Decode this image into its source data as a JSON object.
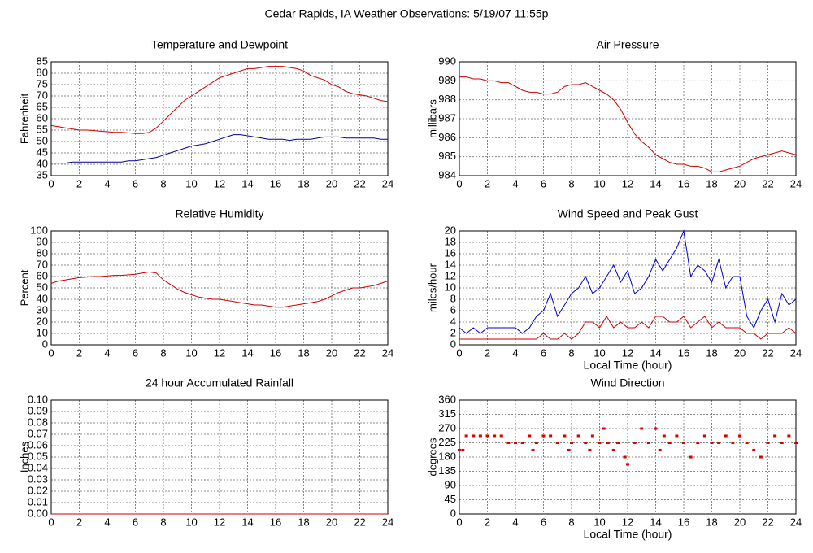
{
  "title": "Cedar Rapids, IA Weather Observations: 5/19/07 11:55p",
  "chart_data": [
    {
      "type": "line",
      "title": "Temperature and Dewpoint",
      "ylabel": "Fahrenheit",
      "x": [
        0,
        0.5,
        1,
        1.5,
        2,
        2.5,
        3,
        3.5,
        4,
        4.5,
        5,
        5.5,
        6,
        6.5,
        7,
        7.5,
        8,
        8.5,
        9,
        9.5,
        10,
        10.5,
        11,
        11.5,
        12,
        12.5,
        13,
        13.5,
        14,
        14.5,
        15,
        15.5,
        16,
        16.5,
        17,
        17.5,
        18,
        18.5,
        19,
        19.5,
        20,
        20.5,
        21,
        21.5,
        22,
        22.5,
        23,
        23.5,
        24
      ],
      "series": [
        {
          "color": "#cc0000",
          "values": [
            57,
            56.5,
            56,
            55.5,
            55,
            55,
            54.8,
            54.5,
            54.3,
            54,
            54,
            53.8,
            53.5,
            53.5,
            54,
            56,
            59,
            62,
            65,
            68,
            70,
            72,
            74,
            76,
            78,
            79,
            80,
            81,
            82,
            82,
            82.5,
            83,
            83,
            83,
            82.5,
            82,
            81,
            79,
            78,
            77,
            75,
            74,
            72,
            71,
            70.5,
            70,
            69,
            68,
            67.5
          ]
        },
        {
          "color": "#000099",
          "values": [
            40.5,
            40.5,
            40.5,
            41,
            41,
            41,
            41,
            41,
            41,
            41,
            41,
            41.5,
            41.5,
            42,
            42.5,
            43,
            44,
            45,
            46,
            47,
            48,
            48.5,
            49,
            50,
            51,
            52,
            53,
            53,
            52.5,
            52,
            51.5,
            51,
            51,
            51,
            50.5,
            51,
            51,
            51,
            51.5,
            52,
            52,
            52,
            51.5,
            51.5,
            51.5,
            51.5,
            51.5,
            51,
            51
          ]
        }
      ],
      "xlim": [
        0,
        24
      ],
      "xticks": [
        0,
        2,
        4,
        6,
        8,
        10,
        12,
        14,
        16,
        18,
        20,
        22,
        24
      ],
      "ylim": [
        35,
        85
      ],
      "yticks": [
        35,
        40,
        45,
        50,
        55,
        60,
        65,
        70,
        75,
        80,
        85
      ],
      "grid": true
    },
    {
      "type": "line",
      "title": "Air Pressure",
      "ylabel": "millibars",
      "x": [
        0,
        0.5,
        1,
        1.5,
        2,
        2.5,
        3,
        3.5,
        4,
        4.5,
        5,
        5.5,
        6,
        6.5,
        7,
        7.5,
        8,
        8.5,
        9,
        9.5,
        10,
        10.5,
        11,
        11.5,
        12,
        12.5,
        13,
        13.5,
        14,
        14.5,
        15,
        15.5,
        16,
        16.5,
        17,
        17.5,
        18,
        18.5,
        19,
        19.5,
        20,
        20.5,
        21,
        21.5,
        22,
        22.5,
        23,
        23.5,
        24
      ],
      "series": [
        {
          "color": "#cc0000",
          "values": [
            989.2,
            989.2,
            989.1,
            989.1,
            989.0,
            989.0,
            988.9,
            988.9,
            988.7,
            988.5,
            988.4,
            988.4,
            988.3,
            988.3,
            988.4,
            988.7,
            988.8,
            988.8,
            988.9,
            988.7,
            988.5,
            988.3,
            988.0,
            987.5,
            986.8,
            986.2,
            985.8,
            985.5,
            985.1,
            984.9,
            984.7,
            984.6,
            984.6,
            984.5,
            984.5,
            984.4,
            984.2,
            984.2,
            984.3,
            984.4,
            984.5,
            984.7,
            984.9,
            985.0,
            985.1,
            985.2,
            985.3,
            985.2,
            985.1
          ]
        }
      ],
      "xlim": [
        0,
        24
      ],
      "xticks": [
        0,
        2,
        4,
        6,
        8,
        10,
        12,
        14,
        16,
        18,
        20,
        22,
        24
      ],
      "ylim": [
        984,
        990
      ],
      "yticks": [
        984,
        985,
        986,
        987,
        988,
        989,
        990
      ],
      "grid": true
    },
    {
      "type": "line",
      "title": "Relative Humidity",
      "ylabel": "Percent",
      "x": [
        0,
        0.5,
        1,
        1.5,
        2,
        2.5,
        3,
        3.5,
        4,
        4.5,
        5,
        5.5,
        6,
        6.5,
        7,
        7.5,
        8,
        8.5,
        9,
        9.5,
        10,
        10.5,
        11,
        11.5,
        12,
        12.5,
        13,
        13.5,
        14,
        14.5,
        15,
        15.5,
        16,
        16.5,
        17,
        17.5,
        18,
        18.5,
        19,
        19.5,
        20,
        20.5,
        21,
        21.5,
        22,
        22.5,
        23,
        23.5,
        24
      ],
      "series": [
        {
          "color": "#cc0000",
          "values": [
            54,
            56,
            57,
            58,
            59,
            59.5,
            60,
            60,
            60.5,
            61,
            61,
            61.5,
            62,
            63,
            64,
            63,
            57,
            53,
            49,
            46,
            44,
            42,
            41,
            40,
            40,
            39,
            38,
            37,
            36,
            35,
            35,
            34,
            33,
            33,
            34,
            35,
            36,
            37,
            38,
            40,
            43,
            46,
            48,
            50,
            50,
            51,
            52,
            54,
            56
          ]
        }
      ],
      "xlim": [
        0,
        24
      ],
      "xticks": [
        0,
        2,
        4,
        6,
        8,
        10,
        12,
        14,
        16,
        18,
        20,
        22,
        24
      ],
      "ylim": [
        0,
        100
      ],
      "yticks": [
        0,
        10,
        20,
        30,
        40,
        50,
        60,
        70,
        80,
        90,
        100
      ],
      "grid": true
    },
    {
      "type": "line",
      "title": "Wind Speed and Peak Gust",
      "ylabel": "miles/hour",
      "xlabel": "Local Time (hour)",
      "x": [
        0,
        0.5,
        1,
        1.5,
        2,
        2.5,
        3,
        3.5,
        4,
        4.5,
        5,
        5.5,
        6,
        6.5,
        7,
        7.5,
        8,
        8.5,
        9,
        9.5,
        10,
        10.5,
        11,
        11.5,
        12,
        12.5,
        13,
        13.5,
        14,
        14.5,
        15,
        15.5,
        16,
        16.5,
        17,
        17.5,
        18,
        18.5,
        19,
        19.5,
        20,
        20.5,
        21,
        21.5,
        22,
        22.5,
        23,
        23.5,
        24
      ],
      "series": [
        {
          "color": "#0000cc",
          "values": [
            3,
            2,
            3,
            2,
            3,
            3,
            3,
            3,
            3,
            2,
            3,
            5,
            6,
            9,
            5,
            7,
            9,
            10,
            12,
            9,
            10,
            12,
            14,
            11,
            13,
            9,
            10,
            12,
            15,
            13,
            15,
            17,
            20,
            12,
            14,
            13,
            11,
            15,
            10,
            12,
            12,
            5,
            3,
            6,
            8,
            4,
            9,
            7,
            8
          ]
        },
        {
          "color": "#cc0000",
          "values": [
            1,
            1,
            1,
            1,
            1,
            1,
            1,
            1,
            1,
            1,
            1,
            1,
            2,
            1,
            1,
            2,
            1,
            2,
            4,
            4,
            3,
            5,
            3,
            4,
            3,
            3,
            4,
            3,
            5,
            5,
            4,
            4,
            5,
            3,
            4,
            5,
            3,
            4,
            3,
            3,
            3,
            2,
            2,
            1,
            2,
            2,
            2,
            3,
            2
          ]
        }
      ],
      "xlim": [
        0,
        24
      ],
      "xticks": [
        0,
        2,
        4,
        6,
        8,
        10,
        12,
        14,
        16,
        18,
        20,
        22,
        24
      ],
      "ylim": [
        0,
        20
      ],
      "yticks": [
        0,
        2,
        4,
        6,
        8,
        10,
        12,
        14,
        16,
        18,
        20
      ],
      "grid": true
    },
    {
      "type": "line",
      "title": "24 hour Accumulated Rainfall",
      "ylabel": "Inches",
      "x": [
        0,
        24
      ],
      "series": [
        {
          "color": "#cc0000",
          "values": [
            0,
            0
          ]
        }
      ],
      "xlim": [
        0,
        24
      ],
      "xticks": [
        0,
        2,
        4,
        6,
        8,
        10,
        12,
        14,
        16,
        18,
        20,
        22,
        24
      ],
      "ylim": [
        0,
        0.1
      ],
      "yticks": [
        {
          "value": 0,
          "label": "0.00"
        },
        {
          "value": 0.01,
          "label": "0.01"
        },
        {
          "value": 0.02,
          "label": "0.02"
        },
        {
          "value": 0.03,
          "label": "0.03"
        },
        {
          "value": 0.04,
          "label": "0.04"
        },
        {
          "value": 0.05,
          "label": "0.05"
        },
        {
          "value": 0.06,
          "label": "0.06"
        },
        {
          "value": 0.07,
          "label": "0.07"
        },
        {
          "value": 0.08,
          "label": "0.08"
        },
        {
          "value": 0.09,
          "label": "0.09"
        },
        {
          "value": 0.1,
          "label": "0.10"
        }
      ],
      "grid": true
    },
    {
      "type": "scatter",
      "title": "Wind Direction",
      "ylabel": "degrees",
      "xlabel": "Local Time (hour)",
      "x": [
        0,
        0.25,
        0.5,
        1,
        1.5,
        2,
        2.5,
        3,
        3.5,
        4,
        4.5,
        5,
        5.25,
        5.5,
        6,
        6.5,
        7,
        7.5,
        7.8,
        8,
        8.5,
        9,
        9.3,
        9.5,
        10,
        10.3,
        10.6,
        11,
        11.3,
        11.8,
        12,
        12.5,
        13,
        13.5,
        14,
        14.3,
        14.6,
        15,
        15.5,
        16,
        16.5,
        17,
        17.5,
        18,
        18.5,
        19,
        19.5,
        20,
        20.5,
        21,
        21.5,
        22,
        22.5,
        23,
        23.5,
        24
      ],
      "series": [
        {
          "color": "#dd0000",
          "values": [
            202,
            202,
            247,
            247,
            247,
            247,
            247,
            247,
            225,
            225,
            225,
            247,
            202,
            225,
            247,
            247,
            225,
            247,
            202,
            225,
            247,
            225,
            202,
            247,
            225,
            270,
            225,
            202,
            225,
            180,
            157,
            225,
            270,
            225,
            270,
            202,
            247,
            225,
            247,
            225,
            180,
            225,
            247,
            225,
            225,
            247,
            225,
            247,
            225,
            202,
            180,
            225,
            247,
            225,
            247,
            225
          ]
        }
      ],
      "xlim": [
        0,
        24
      ],
      "xticks": [
        0,
        2,
        4,
        6,
        8,
        10,
        12,
        14,
        16,
        18,
        20,
        22,
        24
      ],
      "ylim": [
        0,
        360
      ],
      "yticks": [
        0,
        45,
        90,
        135,
        180,
        225,
        270,
        315,
        360
      ],
      "grid": true
    }
  ]
}
